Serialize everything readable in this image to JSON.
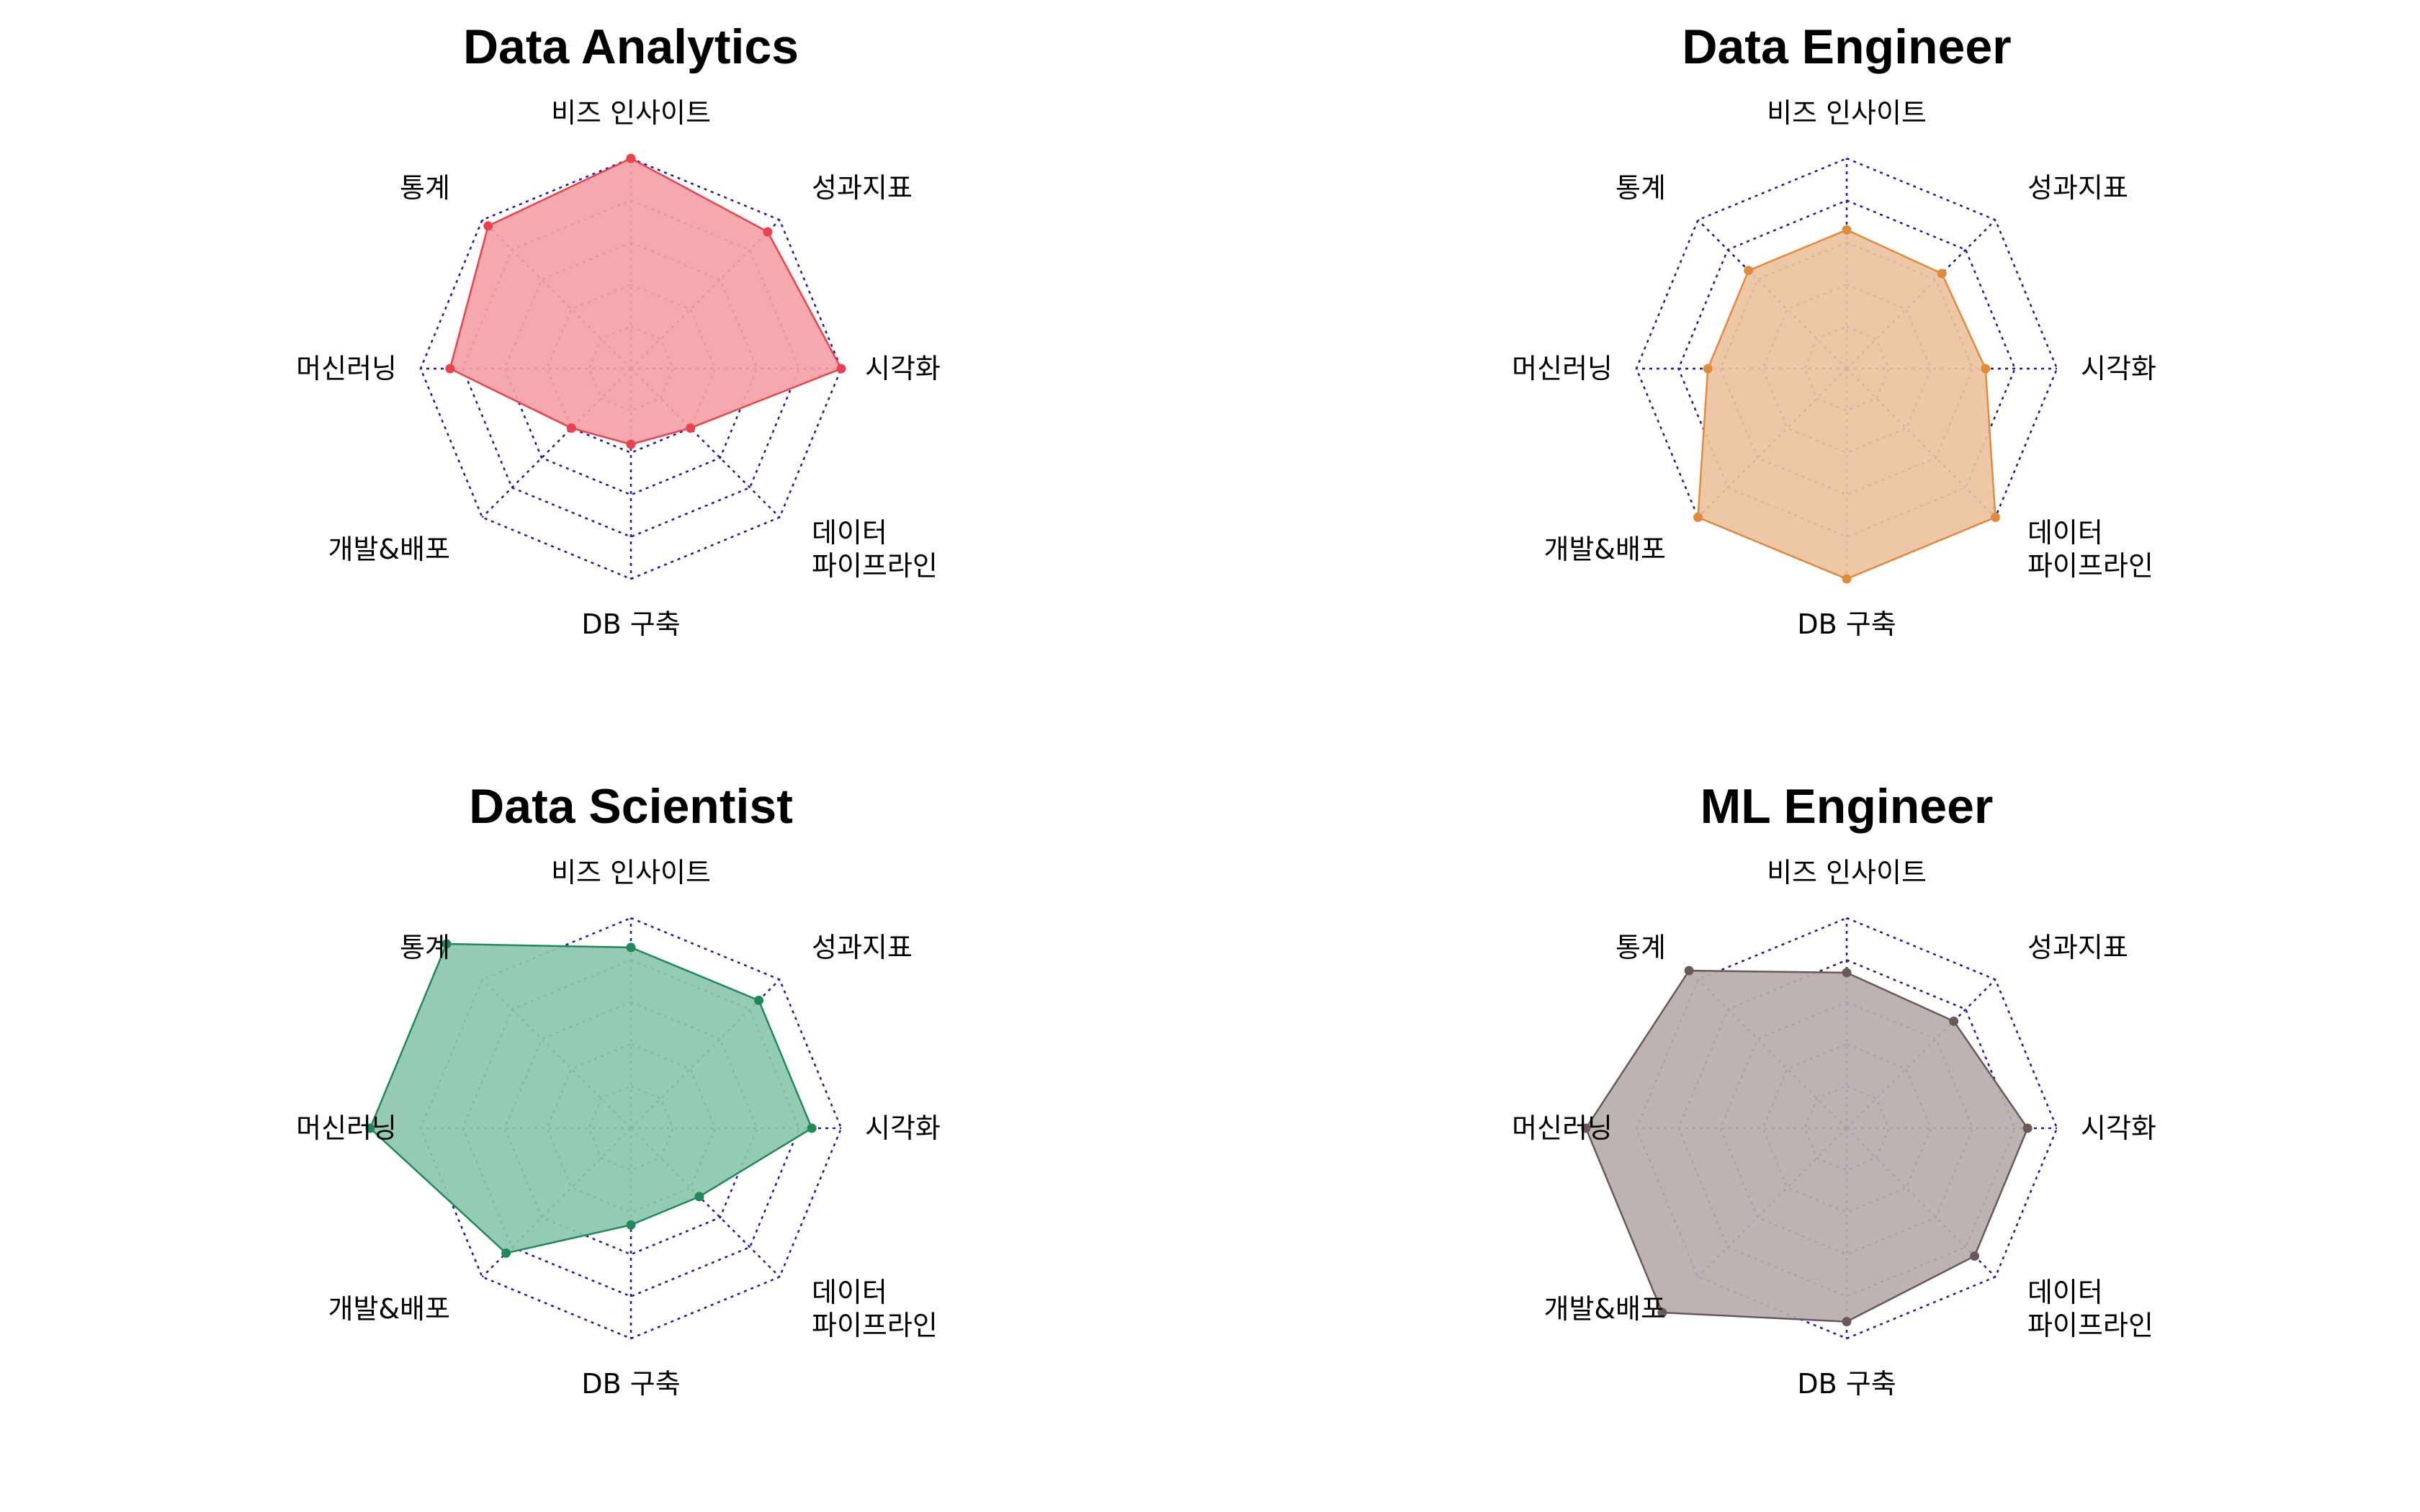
{
  "axes": [
    "비즈 인사이트",
    "성과지표",
    "시각화",
    "데이터\n파이프라인",
    "DB 구축",
    "개발&배포",
    "머신러닝",
    "통계"
  ],
  "chart_data": [
    {
      "type": "radar",
      "title": "Data Analytics",
      "color": "#e8434c",
      "fill": "#f4a2a7",
      "rmax": 5,
      "rings": 5,
      "values": [
        5,
        4.6,
        5,
        2,
        1.8,
        2,
        4.3,
        4.8
      ]
    },
    {
      "type": "radar",
      "title": "Data Engineer",
      "color": "#e08a3c",
      "fill": "#edc29f",
      "rmax": 5,
      "rings": 5,
      "values": [
        3.3,
        3.2,
        3.3,
        5,
        5,
        5,
        3.3,
        3.3
      ]
    },
    {
      "type": "radar",
      "title": "Data Scientist",
      "color": "#1e8a5a",
      "fill": "#8cc6ad",
      "rmax": 5,
      "rings": 5,
      "values": [
        4.3,
        4.3,
        4.3,
        2.3,
        2.3,
        4.2,
        6.2,
        6.2
      ]
    },
    {
      "type": "radar",
      "title": "ML Engineer",
      "color": "#6b5858",
      "fill": "#b7adad",
      "rmax": 5,
      "rings": 5,
      "values": [
        3.7,
        3.6,
        4.3,
        4.3,
        4.6,
        6.2,
        6.2,
        5.3
      ]
    }
  ]
}
